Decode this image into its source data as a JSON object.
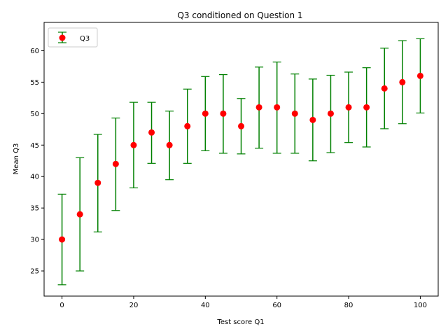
{
  "chart_data": {
    "type": "scatter",
    "title": "Q3 conditioned on Question 1",
    "xlabel": "Test score Q1",
    "ylabel": "Mean Q3",
    "xlim": [
      -5,
      105
    ],
    "ylim": [
      21,
      64.5
    ],
    "xticks": [
      0,
      20,
      40,
      60,
      80,
      100
    ],
    "yticks": [
      25,
      30,
      35,
      40,
      45,
      50,
      55,
      60
    ],
    "grid": false,
    "legend_position": "top-left",
    "series": [
      {
        "name": "Q3",
        "marker_color": "#ff0000",
        "errorbar_color": "#008000",
        "points": [
          {
            "x": 0,
            "y": 30,
            "lo": 22.8,
            "hi": 37.2
          },
          {
            "x": 5,
            "y": 34,
            "lo": 25.0,
            "hi": 43.0
          },
          {
            "x": 10,
            "y": 39,
            "lo": 31.2,
            "hi": 46.7
          },
          {
            "x": 15,
            "y": 42,
            "lo": 34.6,
            "hi": 49.3
          },
          {
            "x": 20,
            "y": 45,
            "lo": 38.2,
            "hi": 51.8
          },
          {
            "x": 25,
            "y": 47,
            "lo": 42.1,
            "hi": 51.8
          },
          {
            "x": 30,
            "y": 45,
            "lo": 39.5,
            "hi": 50.4
          },
          {
            "x": 35,
            "y": 48,
            "lo": 42.1,
            "hi": 53.9
          },
          {
            "x": 40,
            "y": 50,
            "lo": 44.1,
            "hi": 55.9
          },
          {
            "x": 45,
            "y": 50,
            "lo": 43.7,
            "hi": 56.2
          },
          {
            "x": 50,
            "y": 48,
            "lo": 43.6,
            "hi": 52.4
          },
          {
            "x": 55,
            "y": 51,
            "lo": 44.5,
            "hi": 57.4
          },
          {
            "x": 60,
            "y": 51,
            "lo": 43.7,
            "hi": 58.2
          },
          {
            "x": 65,
            "y": 50,
            "lo": 43.7,
            "hi": 56.3
          },
          {
            "x": 70,
            "y": 49,
            "lo": 42.5,
            "hi": 55.5
          },
          {
            "x": 75,
            "y": 50,
            "lo": 43.8,
            "hi": 56.1
          },
          {
            "x": 80,
            "y": 51,
            "lo": 45.4,
            "hi": 56.6
          },
          {
            "x": 85,
            "y": 51,
            "lo": 44.7,
            "hi": 57.3
          },
          {
            "x": 90,
            "y": 54,
            "lo": 47.6,
            "hi": 60.4
          },
          {
            "x": 95,
            "y": 55,
            "lo": 48.4,
            "hi": 61.6
          },
          {
            "x": 100,
            "y": 56,
            "lo": 50.1,
            "hi": 61.9
          }
        ]
      }
    ]
  }
}
